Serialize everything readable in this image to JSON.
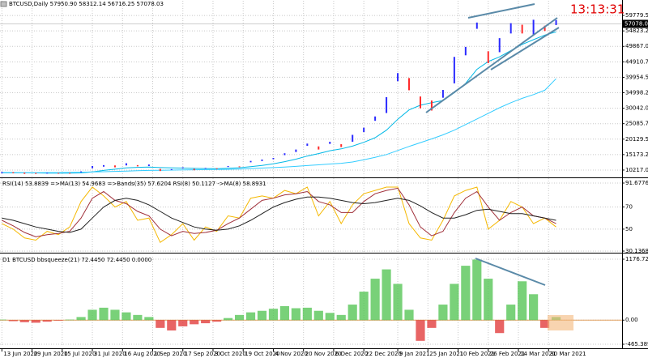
{
  "window_title": "BTCUSD,Daily  57950.90 58312.14 56716.25 57078.03",
  "clock": "13:13:31",
  "chart_data": [
    {
      "type": "hilo",
      "xlim": [
        "2020-06-12",
        "2021-05-08"
      ],
      "ylim": [
        8130,
        63692
      ],
      "grid": true,
      "x": [
        "2020-06-13",
        "2020-06-19",
        "2020-06-25",
        "2020-07-01",
        "2020-07-07",
        "2020-07-13",
        "2020-07-19",
        "2020-07-25",
        "2020-07-31",
        "2020-08-06",
        "2020-08-12",
        "2020-08-18",
        "2020-08-24",
        "2020-08-30",
        "2020-09-05",
        "2020-09-11",
        "2020-09-17",
        "2020-09-23",
        "2020-09-29",
        "2020-10-05",
        "2020-10-11",
        "2020-10-17",
        "2020-10-23",
        "2020-10-29",
        "2020-11-04",
        "2020-11-10",
        "2020-11-16",
        "2020-11-22",
        "2020-11-28",
        "2020-12-04",
        "2020-12-10",
        "2020-12-16",
        "2020-12-22",
        "2020-12-28",
        "2021-01-03",
        "2021-01-09",
        "2021-01-15",
        "2021-01-21",
        "2021-01-27",
        "2021-02-02",
        "2021-02-08",
        "2021-02-14",
        "2021-02-20",
        "2021-02-26",
        "2021-03-04",
        "2021-03-10",
        "2021-03-16",
        "2021-03-22",
        "2021-03-28",
        "2021-04-03"
      ],
      "high": [
        9600,
        9550,
        9400,
        9300,
        9350,
        9300,
        9300,
        9800,
        11500,
        11800,
        11700,
        12400,
        11800,
        12000,
        10600,
        10500,
        11100,
        10600,
        10900,
        10800,
        11500,
        11400,
        13150,
        13600,
        14100,
        15600,
        16800,
        18700,
        17800,
        19300,
        18500,
        21500,
        23800,
        27400,
        33600,
        41300,
        39700,
        33800,
        32500,
        35900,
        46500,
        49700,
        57500,
        48300,
        52500,
        57300,
        56800,
        58400,
        56500,
        58300
      ],
      "low": [
        9200,
        9200,
        9000,
        9000,
        9150,
        9150,
        9100,
        9500,
        10800,
        11300,
        11100,
        11700,
        11400,
        11500,
        9900,
        10200,
        10800,
        10150,
        10650,
        10550,
        11200,
        11200,
        12700,
        13100,
        13700,
        15000,
        16000,
        18000,
        16800,
        18600,
        17600,
        19300,
        22400,
        26000,
        28500,
        38700,
        35800,
        30000,
        29300,
        33400,
        38000,
        47000,
        55500,
        44500,
        48000,
        54000,
        54000,
        53500,
        54800,
        56700
      ],
      "up_color": "#2a2aff",
      "down_color": "#ff2a2a",
      "series": [
        {
          "color": "#00b8e6",
          "values": [
            9400,
            9400,
            9350,
            9300,
            9250,
            9250,
            9250,
            9300,
            9600,
            10100,
            10500,
            10900,
            11100,
            11200,
            11000,
            10900,
            10850,
            10750,
            10700,
            10650,
            10800,
            10950,
            11300,
            11700,
            12200,
            12900,
            13700,
            14700,
            15500,
            16400,
            17000,
            17900,
            19100,
            20600,
            23000,
            26500,
            29500,
            31000,
            31800,
            32500,
            35000,
            38000,
            42500,
            45000,
            46500,
            48500,
            50500,
            52000,
            53500,
            54500
          ]
        },
        {
          "color": "#33ccff",
          "values": [
            9300,
            9300,
            9350,
            9350,
            9400,
            9400,
            9450,
            9500,
            9600,
            9700,
            9800,
            9900,
            10000,
            10100,
            10150,
            10200,
            10250,
            10300,
            10350,
            10400,
            10450,
            10550,
            10700,
            10850,
            11000,
            11200,
            11400,
            11650,
            11900,
            12150,
            12400,
            12800,
            13500,
            14300,
            15200,
            16500,
            17800,
            19000,
            20200,
            21500,
            23000,
            24800,
            26600,
            28400,
            30200,
            31800,
            33200,
            34400,
            35800,
            39500
          ]
        }
      ],
      "current_price": 57078.03,
      "yticks": [
        {
          "value": 59779.5,
          "label": "59779.50"
        },
        54823.25,
        {
          "value": 49867,
          "label": "49867.00"
        },
        44910.75,
        {
          "value": 39954.5,
          "label": "39954.50"
        },
        34998.25,
        {
          "value": 30042,
          "label": "30042.00"
        },
        25085.75,
        {
          "value": 20129.5,
          "label": "20129.50"
        },
        15173.25,
        {
          "value": 10217,
          "label": "10217.00"
        }
      ]
    },
    {
      "type": "line",
      "title": "RSI(14) 53.8839 =>MA(13) 54.9683 =>Bands(35) 57.6204 RSI(8) 50.1127 ->MA(8) 58.8931",
      "xlim": [
        "2020-06-12",
        "2021-05-08"
      ],
      "ylim": [
        30.1368,
        91.6776
      ],
      "grid": true,
      "x": [
        "2020-06-13",
        "2020-06-19",
        "2020-06-25",
        "2020-07-01",
        "2020-07-07",
        "2020-07-13",
        "2020-07-19",
        "2020-07-25",
        "2020-07-31",
        "2020-08-06",
        "2020-08-12",
        "2020-08-18",
        "2020-08-24",
        "2020-08-30",
        "2020-09-05",
        "2020-09-11",
        "2020-09-17",
        "2020-09-23",
        "2020-09-29",
        "2020-10-05",
        "2020-10-11",
        "2020-10-17",
        "2020-10-23",
        "2020-10-29",
        "2020-11-04",
        "2020-11-10",
        "2020-11-16",
        "2020-11-22",
        "2020-11-28",
        "2020-12-04",
        "2020-12-10",
        "2020-12-16",
        "2020-12-22",
        "2020-12-28",
        "2021-01-03",
        "2021-01-09",
        "2021-01-15",
        "2021-01-21",
        "2021-01-27",
        "2021-02-02",
        "2021-02-08",
        "2021-02-14",
        "2021-02-20",
        "2021-02-26",
        "2021-03-04",
        "2021-03-10",
        "2021-03-16",
        "2021-03-22",
        "2021-03-28",
        "2021-04-03"
      ],
      "series": [
        {
          "color": "#f5b800",
          "values": [
            55,
            50,
            42,
            40,
            48,
            45,
            52,
            75,
            88,
            80,
            70,
            75,
            58,
            60,
            38,
            45,
            55,
            40,
            52,
            48,
            62,
            60,
            78,
            80,
            78,
            85,
            82,
            88,
            62,
            75,
            55,
            72,
            82,
            85,
            88,
            88,
            55,
            42,
            40,
            58,
            80,
            85,
            88,
            50,
            58,
            75,
            70,
            55,
            60,
            52
          ]
        },
        {
          "color": "#a0303a",
          "values": [
            58,
            53,
            47,
            43,
            45,
            46,
            48,
            60,
            78,
            84,
            76,
            73,
            66,
            62,
            50,
            44,
            48,
            46,
            47,
            49,
            55,
            60,
            68,
            76,
            78,
            81,
            82,
            84,
            75,
            72,
            65,
            65,
            75,
            82,
            85,
            87,
            72,
            52,
            44,
            48,
            65,
            78,
            84,
            70,
            58,
            65,
            70,
            62,
            60,
            55
          ]
        },
        {
          "color": "#222222",
          "values": [
            60,
            58,
            55,
            52,
            50,
            48,
            47,
            50,
            60,
            70,
            76,
            78,
            76,
            72,
            66,
            60,
            56,
            52,
            50,
            49,
            50,
            53,
            58,
            64,
            70,
            74,
            77,
            79,
            79,
            78,
            76,
            74,
            73,
            74,
            76,
            78,
            76,
            71,
            65,
            60,
            60,
            63,
            67,
            68,
            66,
            64,
            64,
            62,
            60,
            58
          ]
        }
      ],
      "yticks": [
        91.6776,
        70,
        50,
        30.1368
      ]
    },
    {
      "type": "histogram",
      "title": "D1 BTCUSD bbsqueeze(21) 72.4450 72.4450 0.0000",
      "xlim": [
        "2020-06-12",
        "2021-05-08"
      ],
      "ylim": [
        -465.3893,
        1176.7217
      ],
      "grid": true,
      "x": [
        "2020-06-13",
        "2020-06-19",
        "2020-06-25",
        "2020-07-01",
        "2020-07-07",
        "2020-07-13",
        "2020-07-19",
        "2020-07-25",
        "2020-07-31",
        "2020-08-06",
        "2020-08-12",
        "2020-08-18",
        "2020-08-24",
        "2020-08-30",
        "2020-09-05",
        "2020-09-11",
        "2020-09-17",
        "2020-09-23",
        "2020-09-29",
        "2020-10-05",
        "2020-10-11",
        "2020-10-17",
        "2020-10-23",
        "2020-10-29",
        "2020-11-04",
        "2020-11-10",
        "2020-11-16",
        "2020-11-22",
        "2020-11-28",
        "2020-12-04",
        "2020-12-10",
        "2020-12-16",
        "2020-12-22",
        "2020-12-28",
        "2021-01-03",
        "2021-01-09",
        "2021-01-15",
        "2021-01-21",
        "2021-01-27",
        "2021-02-02",
        "2021-02-08",
        "2021-02-14",
        "2021-02-20",
        "2021-02-26",
        "2021-03-04",
        "2021-03-10",
        "2021-03-16",
        "2021-03-22",
        "2021-03-28",
        "2021-04-03"
      ],
      "values": [
        10,
        -20,
        -40,
        -50,
        -30,
        -10,
        10,
        60,
        200,
        240,
        200,
        150,
        100,
        60,
        -150,
        -200,
        -120,
        -80,
        -60,
        -30,
        40,
        100,
        150,
        180,
        220,
        270,
        230,
        240,
        180,
        140,
        100,
        300,
        550,
        800,
        980,
        700,
        200,
        -400,
        -150,
        300,
        700,
        1050,
        1170,
        800,
        -250,
        300,
        750,
        500,
        -150,
        60
      ],
      "positive_color": "#4cc24c",
      "negative_color": "#e03030",
      "yticks": [
        1176.7217,
        {
          "value": 0,
          "label": "0.00"
        },
        -465.3893
      ],
      "xticks": [
        {
          "value": "2020-06-13",
          "label": "13 Jun 2020"
        },
        {
          "value": "2020-06-29",
          "label": "29 Jun 2020"
        },
        {
          "value": "2020-07-15",
          "label": "15 Jul 2020"
        },
        {
          "value": "2020-07-31",
          "label": "31 Jul 2020"
        },
        {
          "value": "2020-08-16",
          "label": "16 Aug 2020"
        },
        {
          "value": "2020-09-01",
          "label": "1 Sep 2020"
        },
        {
          "value": "2020-09-17",
          "label": "17 Sep 2020"
        },
        {
          "value": "2020-10-03",
          "label": "3 Oct 2020"
        },
        {
          "value": "2020-10-19",
          "label": "19 Oct 2020"
        },
        {
          "value": "2020-11-04",
          "label": "4 Nov 2020"
        },
        {
          "value": "2020-11-20",
          "label": "20 Nov 2020"
        },
        {
          "value": "2020-12-06",
          "label": "6 Dec 2020"
        },
        {
          "value": "2020-12-22",
          "label": "22 Dec 2020"
        },
        {
          "value": "2021-01-09",
          "label": "9 Jan 2021"
        },
        {
          "value": "2021-01-25",
          "label": "25 Jan 2021"
        },
        {
          "value": "2021-02-10",
          "label": "10 Feb 2021"
        },
        {
          "value": "2021-02-26",
          "label": "26 Feb 2021"
        },
        {
          "value": "2021-03-14",
          "label": "14 Mar 2021"
        },
        {
          "value": "2021-03-30",
          "label": "30 Mar 2021"
        }
      ]
    }
  ]
}
